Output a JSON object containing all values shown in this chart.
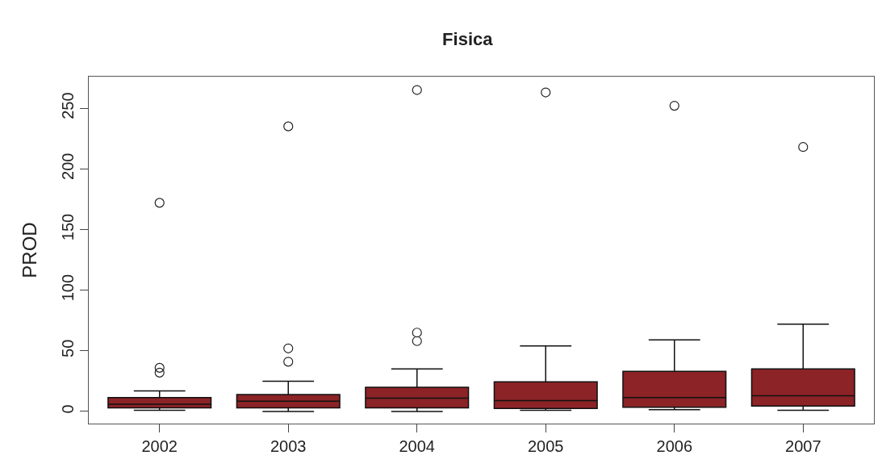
{
  "chart_data": {
    "type": "box",
    "title": "Fisica",
    "ylabel": "PROD",
    "categories": [
      "2002",
      "2003",
      "2004",
      "2005",
      "2006",
      "2007"
    ],
    "color": "#8b2327",
    "boxes": [
      {
        "low": 1,
        "q1": 3,
        "median": 6,
        "q3": 11.5,
        "high": 17,
        "outliers": [
          32,
          36,
          172
        ]
      },
      {
        "low": 0,
        "q1": 3,
        "median": 8.5,
        "q3": 14,
        "high": 25,
        "outliers": [
          41,
          52,
          235
        ]
      },
      {
        "low": 0,
        "q1": 3,
        "median": 11,
        "q3": 20,
        "high": 35,
        "outliers": [
          58,
          65,
          265
        ]
      },
      {
        "low": 1,
        "q1": 2.5,
        "median": 9,
        "q3": 24.5,
        "high": 54,
        "outliers": [
          263
        ]
      },
      {
        "low": 1.5,
        "q1": 3.5,
        "median": 11.5,
        "q3": 33,
        "high": 59,
        "outliers": [
          252
        ]
      },
      {
        "low": 1,
        "q1": 4.5,
        "median": 13,
        "q3": 35,
        "high": 72,
        "outliers": [
          218
        ]
      }
    ],
    "ylim": [
      -10,
      276
    ],
    "yticks": [
      0,
      50,
      100,
      150,
      200,
      250
    ],
    "marker": "circle"
  }
}
